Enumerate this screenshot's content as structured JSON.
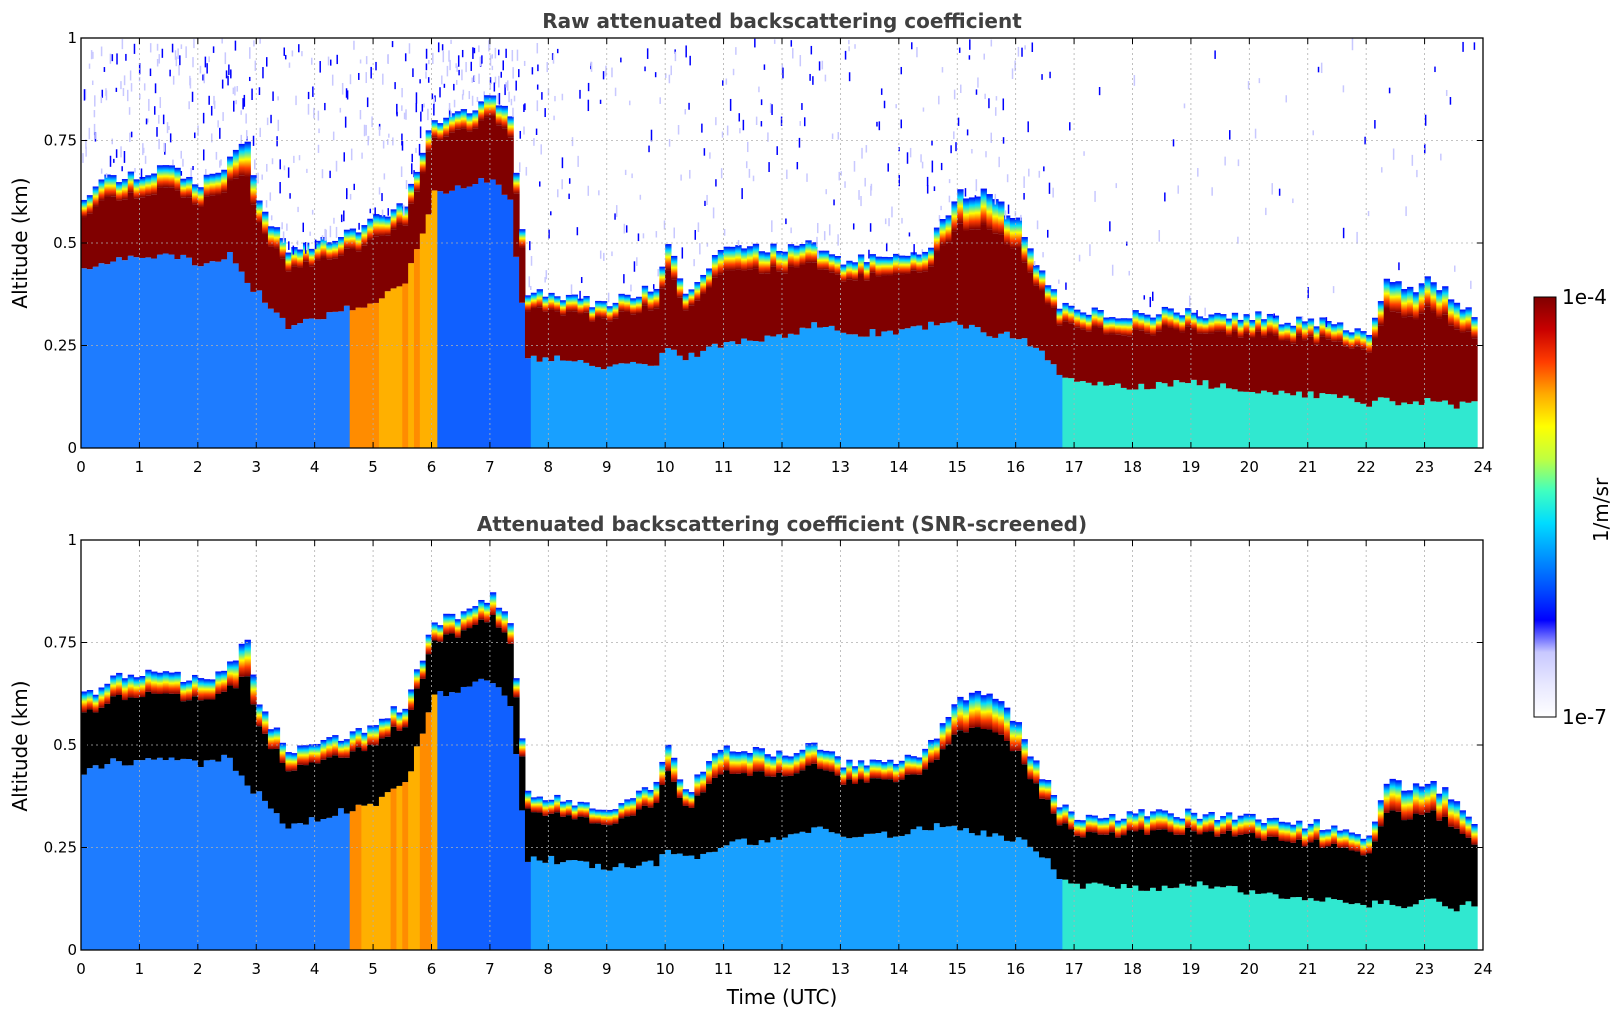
{
  "chart_data": [
    {
      "type": "heatmap",
      "title": "Raw attenuated backscattering coefficient",
      "xlabel": "",
      "ylabel": "Altitude (km)",
      "xlim": [
        0,
        24
      ],
      "ylim": [
        0,
        1
      ],
      "xticks": [
        "0",
        "1",
        "2",
        "3",
        "4",
        "5",
        "6",
        "7",
        "8",
        "9",
        "10",
        "11",
        "12",
        "13",
        "14",
        "15",
        "16",
        "17",
        "18",
        "19",
        "20",
        "21",
        "22",
        "23",
        "24"
      ],
      "yticks": [
        "0",
        "0.25",
        "0.5",
        "0.75",
        "1"
      ],
      "grid": true,
      "screening": "none"
    },
    {
      "type": "heatmap",
      "title": "Attenuated backscattering coefficient (SNR-screened)",
      "xlabel": "Time (UTC)",
      "ylabel": "Altitude (km)",
      "xlim": [
        0,
        24
      ],
      "ylim": [
        0,
        1
      ],
      "xticks": [
        "0",
        "1",
        "2",
        "3",
        "4",
        "5",
        "6",
        "7",
        "8",
        "9",
        "10",
        "11",
        "12",
        "13",
        "14",
        "15",
        "16",
        "17",
        "18",
        "19",
        "20",
        "21",
        "22",
        "23",
        "24"
      ],
      "yticks": [
        "0",
        "0.25",
        "0.5",
        "0.75",
        "1"
      ],
      "grid": true,
      "screening": "snr"
    }
  ],
  "colorbar": {
    "label": "1/m/sr",
    "max_label": "1e-4",
    "min_label": "1e-7",
    "scale": "log",
    "colormap": [
      "#ffffff",
      "#e8e8ff",
      "#c8c8ff",
      "#0000ff",
      "#0050ff",
      "#0096ff",
      "#00dcff",
      "#40ffc0",
      "#c0ff40",
      "#ffff00",
      "#ffaa00",
      "#ff3c00",
      "#c80000",
      "#800000"
    ]
  },
  "layer_profile": {
    "time": [
      0,
      0.5,
      1,
      1.5,
      2,
      2.5,
      2.8,
      3,
      3.5,
      4,
      4.5,
      5,
      5.5,
      6,
      6.5,
      7,
      7.3,
      7.6,
      8,
      9,
      9.8,
      10,
      10.3,
      11,
      12,
      12.5,
      13,
      14,
      14.5,
      15,
      15.5,
      16,
      16.3,
      16.7,
      17,
      18,
      19,
      20,
      21,
      22,
      22.3,
      22.7,
      23,
      23.5,
      23.9
    ],
    "top_km": [
      0.62,
      0.66,
      0.67,
      0.68,
      0.65,
      0.7,
      0.75,
      0.6,
      0.48,
      0.5,
      0.52,
      0.56,
      0.6,
      0.8,
      0.82,
      0.86,
      0.8,
      0.38,
      0.37,
      0.35,
      0.4,
      0.5,
      0.38,
      0.5,
      0.48,
      0.5,
      0.46,
      0.46,
      0.5,
      0.62,
      0.62,
      0.55,
      0.45,
      0.35,
      0.33,
      0.33,
      0.33,
      0.32,
      0.31,
      0.28,
      0.42,
      0.38,
      0.42,
      0.36,
      0.3
    ],
    "base_km": [
      0.43,
      0.46,
      0.46,
      0.47,
      0.45,
      0.47,
      0.4,
      0.38,
      0.3,
      0.32,
      0.34,
      0.36,
      0.4,
      0.62,
      0.64,
      0.66,
      0.6,
      0.22,
      0.22,
      0.2,
      0.21,
      0.24,
      0.22,
      0.26,
      0.27,
      0.3,
      0.28,
      0.28,
      0.3,
      0.3,
      0.28,
      0.27,
      0.25,
      0.18,
      0.16,
      0.15,
      0.16,
      0.14,
      0.13,
      0.11,
      0.12,
      0.1,
      0.12,
      0.1,
      0.12
    ]
  }
}
